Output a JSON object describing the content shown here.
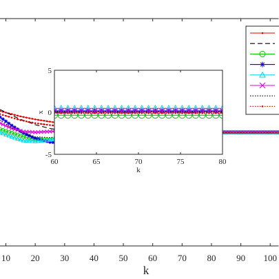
{
  "chart_data": [
    {
      "type": "line",
      "title": "",
      "xlabel": "k",
      "ylabel": "",
      "xlim": [
        8,
        103
      ],
      "ylim": [
        -7.5,
        7.5
      ],
      "xticks": [
        10,
        20,
        30,
        40,
        50,
        60,
        70,
        80,
        90,
        100
      ],
      "xtick_labels": [
        "10",
        "20",
        "30",
        "40",
        "50",
        "60",
        "70",
        "80",
        "90",
        "100"
      ],
      "grid": false,
      "legend": {
        "placement": "top-right",
        "entries": [
          "",
          "",
          "",
          "",
          "",
          "",
          "",
          ""
        ]
      },
      "series": [
        {
          "color": "#e00000",
          "style": "solid",
          "marker": "dot",
          "x": [
            8,
            15,
            20,
            30,
            40,
            50,
            60,
            70,
            80,
            90,
            103
          ],
          "y": [
            1.4,
            1.05,
            0.85,
            0.55,
            0.3,
            0.12,
            0.04,
            0.01,
            0.0,
            0.0,
            0.0
          ]
        },
        {
          "color": "#000000",
          "style": "dashed",
          "marker": "none",
          "x": [
            8,
            15,
            20,
            25,
            30,
            40,
            50,
            60,
            70,
            90,
            103
          ],
          "y": [
            1.5,
            0.85,
            0.5,
            0.25,
            0.1,
            0.02,
            0.0,
            0.0,
            0.0,
            0.0,
            0.0
          ]
        },
        {
          "color": "#00c800",
          "style": "solid",
          "marker": "circle",
          "x": [
            8,
            12,
            16,
            20,
            25,
            30,
            35,
            40,
            45,
            50,
            55,
            60,
            65,
            70,
            75,
            80,
            90,
            103
          ],
          "y": [
            0.2,
            -0.05,
            -0.3,
            -0.45,
            -0.5,
            -0.45,
            -0.4,
            -0.3,
            -0.25,
            -0.2,
            -0.15,
            -0.1,
            -0.05,
            -0.02,
            0.0,
            0.0,
            0.0,
            0.0
          ]
        },
        {
          "color": "#0000e0",
          "style": "solid",
          "marker": "star",
          "x": [
            8,
            12,
            16,
            20,
            25,
            30,
            35,
            40,
            45,
            50,
            55,
            60,
            65,
            70,
            80,
            90,
            103
          ],
          "y": [
            1.0,
            0.45,
            -0.05,
            -0.4,
            -0.65,
            -0.7,
            -0.65,
            -0.55,
            -0.4,
            -0.25,
            -0.15,
            -0.08,
            -0.03,
            0.0,
            0.0,
            0.0,
            0.0
          ]
        },
        {
          "color": "#00d8e0",
          "style": "solid",
          "marker": "triangle",
          "x": [
            8,
            12,
            16,
            20,
            25,
            30,
            35,
            40,
            45,
            50,
            55,
            60,
            70,
            80,
            90,
            103
          ],
          "y": [
            0.0,
            -0.3,
            -0.55,
            -0.6,
            -0.5,
            -0.4,
            -0.3,
            -0.2,
            -0.15,
            -0.1,
            -0.05,
            -0.02,
            0.0,
            0.0,
            0.0,
            0.0
          ]
        },
        {
          "color": "#e000e0",
          "style": "solid",
          "marker": "cross",
          "x": [
            8,
            12,
            16,
            20,
            25,
            30,
            35,
            40,
            45,
            50,
            60,
            70,
            80,
            90,
            103
          ],
          "y": [
            0.6,
            0.25,
            0.05,
            0.0,
            0.05,
            0.1,
            0.12,
            0.12,
            0.1,
            0.08,
            0.04,
            0.02,
            0.0,
            0.0,
            0.0
          ]
        },
        {
          "color": "#000000",
          "style": "dotted",
          "marker": "none",
          "x": [
            8,
            12,
            16,
            20,
            25,
            30,
            40,
            50,
            60,
            103
          ],
          "y": [
            0.8,
            0.3,
            -0.1,
            -0.3,
            -0.35,
            -0.25,
            -0.1,
            -0.03,
            0.0,
            0.0
          ]
        },
        {
          "color": "#e00000",
          "style": "dotted",
          "marker": "dot",
          "x": [
            8,
            15,
            20,
            30,
            40,
            50,
            60,
            70,
            80,
            90,
            103
          ],
          "y": [
            1.2,
            0.8,
            0.6,
            0.35,
            0.15,
            0.05,
            0.01,
            0.0,
            0.0,
            0.0,
            0.0
          ]
        }
      ]
    },
    {
      "type": "line",
      "title": "",
      "xlabel": "k",
      "ylabel": "x",
      "xlim": [
        60,
        80
      ],
      "ylim": [
        -5,
        5
      ],
      "xticks": [
        60,
        65,
        70,
        75,
        80
      ],
      "xtick_labels": [
        "60",
        "65",
        "70",
        "75",
        "80"
      ],
      "yticks": [
        5,
        0,
        -5
      ],
      "ytick_labels": [
        "5",
        "0",
        "-5"
      ],
      "grid": false,
      "series": [
        {
          "color": "#e00000",
          "style": "solid",
          "marker": "dot",
          "x": [
            60,
            80
          ],
          "y": [
            0.05,
            0.05
          ]
        },
        {
          "color": "#000000",
          "style": "dashed",
          "marker": "none",
          "x": [
            60,
            80
          ],
          "y": [
            0.0,
            0.0
          ]
        },
        {
          "color": "#00c800",
          "style": "solid",
          "marker": "circle",
          "x": [
            60,
            80
          ],
          "y": [
            -0.35,
            -0.35
          ]
        },
        {
          "color": "#0000e0",
          "style": "solid",
          "marker": "star",
          "x": [
            60,
            80
          ],
          "y": [
            0.2,
            0.2
          ]
        },
        {
          "color": "#00d8e0",
          "style": "solid",
          "marker": "triangle",
          "x": [
            60,
            80
          ],
          "y": [
            0.45,
            0.45
          ]
        },
        {
          "color": "#e000e0",
          "style": "solid",
          "marker": "cross",
          "x": [
            60,
            80
          ],
          "y": [
            0.15,
            0.15
          ]
        },
        {
          "color": "#000000",
          "style": "dotted",
          "marker": "none",
          "x": [
            60,
            80
          ],
          "y": [
            0.1,
            0.1
          ]
        },
        {
          "color": "#e00000",
          "style": "dotted",
          "marker": "dot",
          "x": [
            60,
            80
          ],
          "y": [
            -0.1,
            -0.1
          ]
        }
      ]
    }
  ]
}
